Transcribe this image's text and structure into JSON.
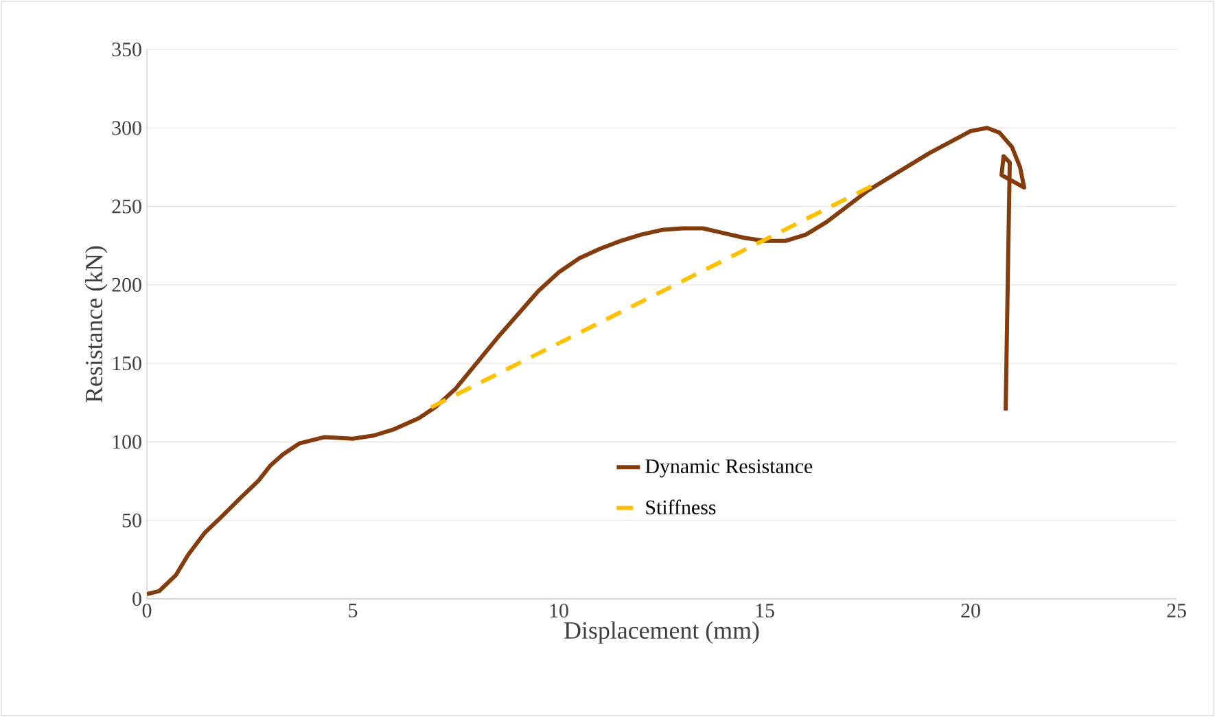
{
  "chart_data": {
    "type": "line",
    "xlabel": "Displacement (mm)",
    "ylabel": "Resistance (kN)",
    "xlim": [
      0,
      25
    ],
    "ylim": [
      0,
      350
    ],
    "xticks": [
      0,
      5,
      10,
      15,
      20,
      25
    ],
    "yticks": [
      0,
      50,
      100,
      150,
      200,
      250,
      300,
      350
    ],
    "grid": "y",
    "legend": "bottom right",
    "marker": "none",
    "series": [
      {
        "name": "Dynamic Resistance",
        "color": "#843c0c",
        "line_style": "solid",
        "x": [
          0,
          0.3,
          0.7,
          1.0,
          1.4,
          1.8,
          2.3,
          2.7,
          3.0,
          3.3,
          3.7,
          4.3,
          5.0,
          5.5,
          6.0,
          6.6,
          7.0,
          7.5,
          8.0,
          8.5,
          9.0,
          9.5,
          10.0,
          10.5,
          11.0,
          11.5,
          12.0,
          12.5,
          13.0,
          13.5,
          14.0,
          14.5,
          15.0,
          15.5,
          16.0,
          16.5,
          17.0,
          17.5,
          18.0,
          18.5,
          19.0,
          19.5,
          20.0,
          20.4,
          20.7,
          21.0,
          21.2,
          21.3,
          20.75,
          20.8,
          20.95,
          20.9,
          20.85
        ],
        "values": [
          3,
          5,
          15,
          28,
          42,
          52,
          65,
          75,
          85,
          92,
          99,
          103,
          102,
          104,
          108,
          115,
          122,
          134,
          150,
          166,
          181,
          196,
          208,
          217,
          223,
          228,
          232,
          235,
          236,
          236,
          233,
          230,
          228,
          228,
          232,
          240,
          250,
          260,
          268,
          276,
          284,
          291,
          298,
          300,
          297,
          288,
          275,
          262,
          270,
          282,
          278,
          200,
          120
        ]
      },
      {
        "name": "Stiffness",
        "color": "#ffc000",
        "line_style": "dashed",
        "x": [
          6.9,
          17.6
        ],
        "values": [
          122,
          263
        ]
      }
    ]
  }
}
